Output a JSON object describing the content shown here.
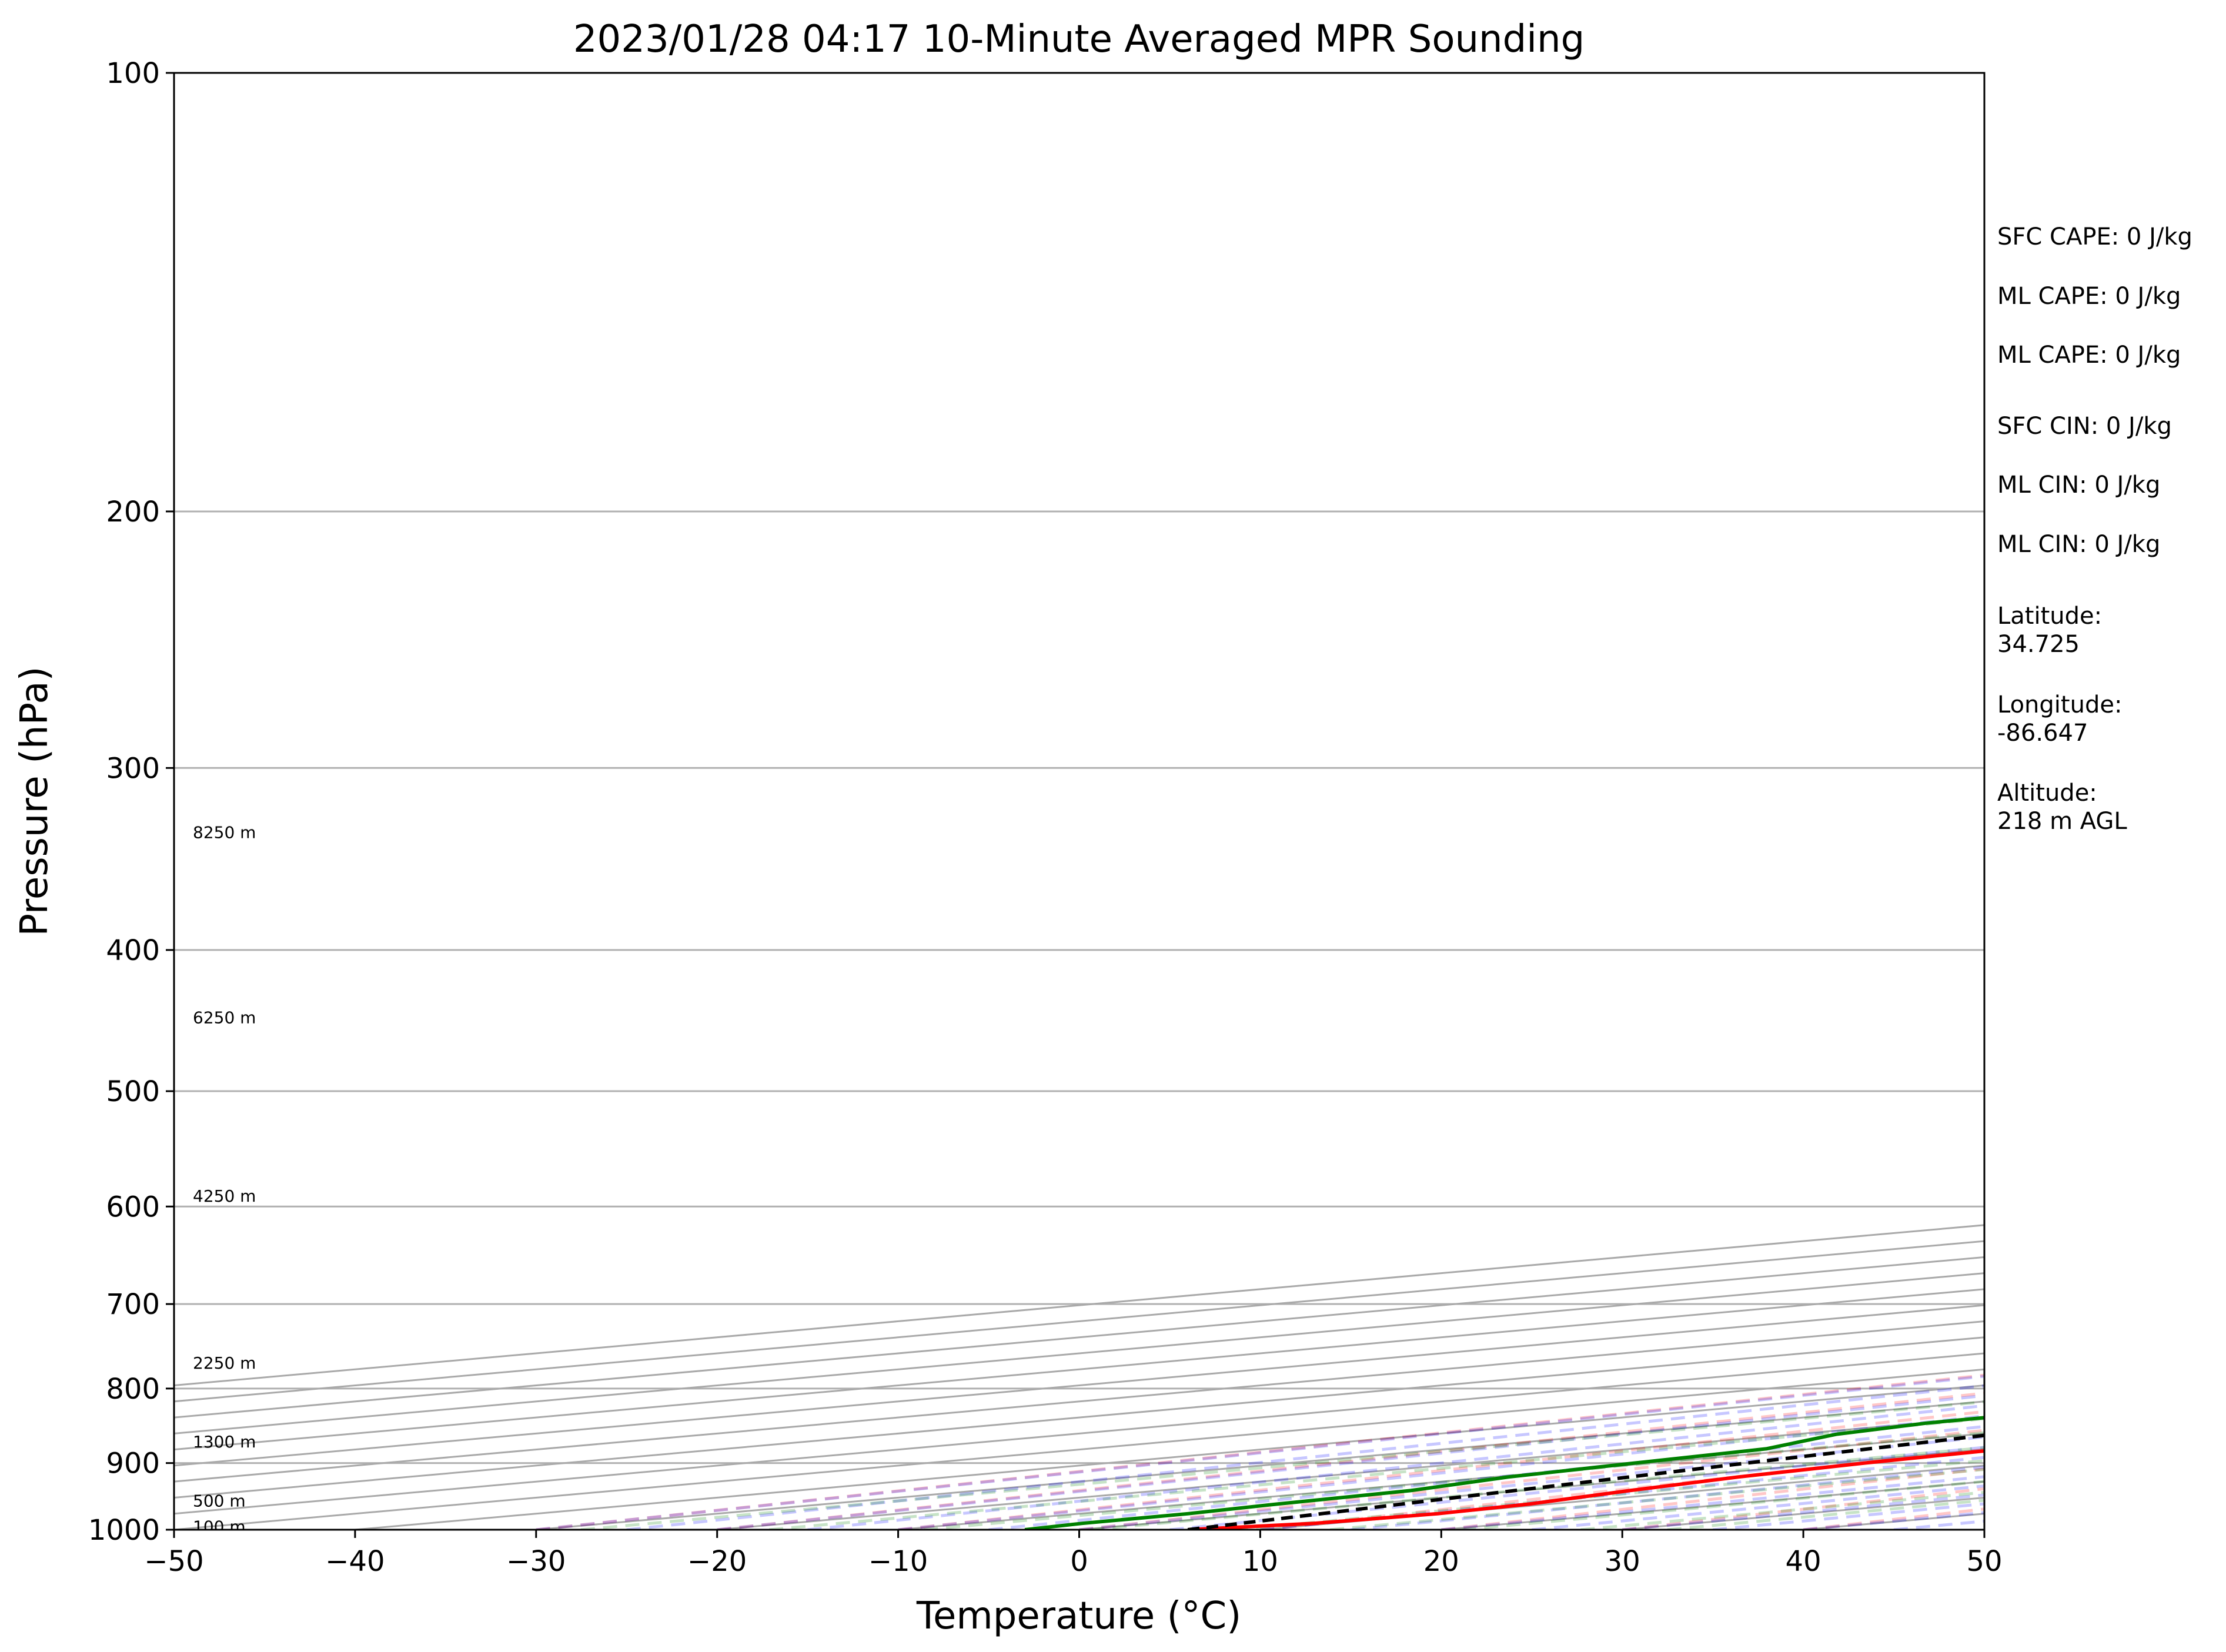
{
  "chart_data": {
    "type": "line",
    "title": "2023/01/28 04:17 10-Minute Averaged MPR Sounding",
    "xlabel": "Temperature (°C)",
    "ylabel": "Pressure (hPa)",
    "xlim": [
      -50,
      50
    ],
    "ylim": [
      1000,
      100
    ],
    "y_scale": "log",
    "skew_t": true,
    "grid": true,
    "xticks": [
      "−50",
      "−40",
      "−30",
      "−20",
      "−10",
      "0",
      "10",
      "20",
      "30",
      "40",
      "50"
    ],
    "yticks": [
      "100",
      "200",
      "300",
      "400",
      "500",
      "600",
      "700",
      "800",
      "900",
      "1000"
    ],
    "series": [
      {
        "role": "temperature",
        "color": "#ff0000",
        "points": [
          [
            1000,
            6.0
          ],
          [
            990,
            9.0
          ],
          [
            975,
            9.8
          ],
          [
            960,
            8.8
          ],
          [
            940,
            6.0
          ],
          [
            920,
            3.5
          ],
          [
            900,
            1.8
          ],
          [
            880,
            0.7
          ],
          [
            860,
            -0.5
          ],
          [
            845,
            -1.0
          ],
          [
            830,
            -1.4
          ],
          [
            815,
            -2.2
          ],
          [
            800,
            -3.0
          ],
          [
            780,
            -4.6
          ],
          [
            760,
            -6.4
          ],
          [
            740,
            -7.8
          ],
          [
            720,
            -8.4
          ],
          [
            700,
            -8.6
          ],
          [
            680,
            -8.9
          ],
          [
            660,
            -9.8
          ],
          [
            640,
            -10.9
          ],
          [
            620,
            -12.1
          ],
          [
            600,
            -13.1
          ],
          [
            580,
            -14.2
          ],
          [
            560,
            -16.0
          ],
          [
            540,
            -17.9
          ],
          [
            520,
            -19.4
          ],
          [
            500,
            -21.4
          ],
          [
            480,
            -23.6
          ],
          [
            460,
            -25.7
          ],
          [
            440,
            -27.7
          ],
          [
            420,
            -29.9
          ],
          [
            400,
            -32.1
          ],
          [
            380,
            -34.4
          ],
          [
            360,
            -36.8
          ],
          [
            340,
            -39.3
          ],
          [
            320,
            -41.9
          ],
          [
            300,
            -44.4
          ],
          [
            285,
            -46.5
          ],
          [
            270,
            -48.4
          ],
          [
            260,
            -50.0
          ]
        ]
      },
      {
        "role": "dewpoint",
        "color": "#008000",
        "points": [
          [
            1000,
            -3.0
          ],
          [
            990,
            -3.8
          ],
          [
            975,
            -4.0
          ],
          [
            960,
            -5.1
          ],
          [
            940,
            -6.1
          ],
          [
            920,
            -9.2
          ],
          [
            900,
            -10.9
          ],
          [
            880,
            -12.5
          ],
          [
            860,
            -17.7
          ],
          [
            845,
            -19.7
          ],
          [
            830,
            -20.1
          ],
          [
            815,
            -21.2
          ],
          [
            800,
            -22.5
          ],
          [
            780,
            -24.6
          ],
          [
            760,
            -26.3
          ],
          [
            740,
            -28.2
          ],
          [
            720,
            -31.1
          ],
          [
            700,
            -32.7
          ],
          [
            680,
            -36.9
          ],
          [
            660,
            -40.7
          ],
          [
            640,
            -44.5
          ],
          [
            620,
            -47.2
          ],
          [
            600,
            -44.1
          ],
          [
            580,
            -47.4
          ],
          [
            560,
            -50.7
          ],
          [
            540,
            -55.7
          ],
          [
            520,
            -53.0
          ],
          [
            500,
            -59.8
          ],
          [
            480,
            -75.4
          ],
          [
            465,
            -72.0
          ],
          [
            450,
            -76.2
          ],
          [
            430,
            -84.1
          ],
          [
            400,
            -87.5
          ],
          [
            390,
            -83.7
          ],
          [
            385,
            -86.0
          ],
          [
            370,
            -96.5
          ],
          [
            360,
            -93.8
          ],
          [
            340,
            -96.7
          ],
          [
            330,
            -96.7
          ],
          [
            320,
            -98.5
          ]
        ]
      },
      {
        "role": "parcel",
        "color": "#000000",
        "style": "dashed",
        "points": [
          [
            1000,
            6.0
          ],
          [
            950,
            0.7
          ],
          [
            900,
            -4.7
          ],
          [
            850,
            -10.1
          ],
          [
            800,
            -15.9
          ],
          [
            750,
            -22.1
          ],
          [
            700,
            -28.7
          ],
          [
            650,
            -35.8
          ],
          [
            600,
            -43.5
          ],
          [
            550,
            -51.8
          ],
          [
            500,
            -60.9
          ],
          [
            450,
            -71.0
          ],
          [
            400,
            -82.4
          ],
          [
            350,
            -95.3
          ],
          [
            300,
            -110.4
          ],
          [
            250,
            -128.0
          ]
        ]
      }
    ],
    "height_labels": [
      "8250 m",
      "6250 m",
      "4250 m",
      "2250 m",
      "1300 m",
      "500 m",
      "100 m"
    ],
    "height_label_pressures": [
      332,
      445,
      590,
      768,
      870,
      955,
      995
    ],
    "reference_lines": {
      "dry_adiabats_color": "#ff0000",
      "moist_adiabats_color": "#0000ff",
      "mixing_ratio_color": "#008000",
      "isotherms_color": "#808080"
    }
  },
  "side_info": [
    "SFC CAPE: 0 J/kg",
    "ML CAPE: 0 J/kg",
    "ML CAPE: 0 J/kg",
    "SFC CIN: 0 J/kg",
    "ML CIN: 0 J/kg",
    "ML CIN: 0 J/kg"
  ],
  "location": {
    "lat_label": "Latitude:",
    "lat_value": "34.725",
    "lon_label": "Longitude:",
    "lon_value": "-86.647",
    "alt_label": "Altitude:",
    "alt_value": "218 m AGL"
  }
}
